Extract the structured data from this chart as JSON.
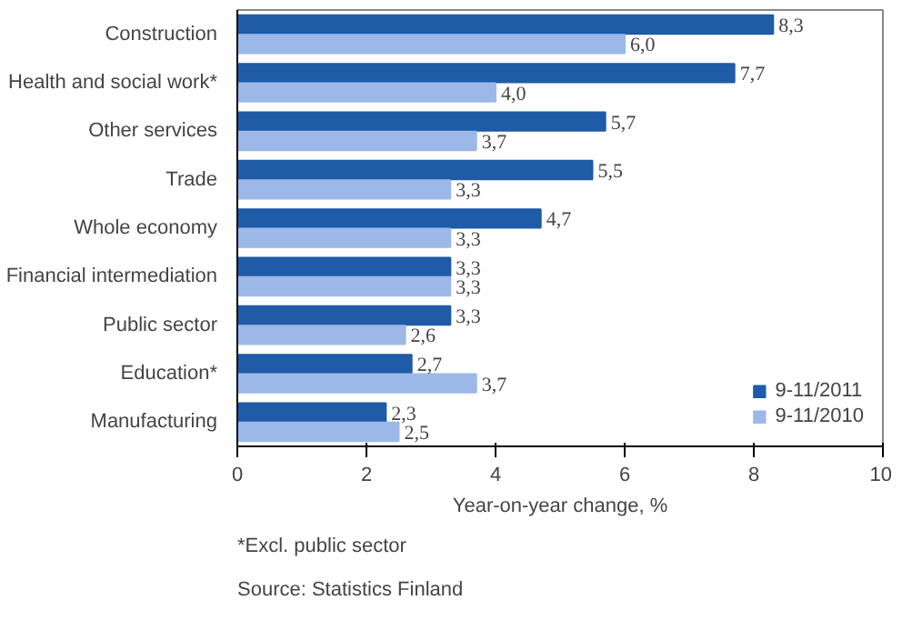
{
  "chart_data": {
    "type": "bar",
    "orientation": "horizontal",
    "xlabel": "Year-on-year change, %",
    "categories": [
      "Construction",
      "Health and social work*",
      "Other services",
      "Trade",
      "Whole economy",
      "Financial intermediation",
      "Public sector",
      "Education*",
      "Manufacturing"
    ],
    "series": [
      {
        "name": "9-11/2011",
        "color": "#1f5ba6",
        "values": [
          8.3,
          7.7,
          5.7,
          5.5,
          4.7,
          3.3,
          3.3,
          2.7,
          2.3
        ],
        "value_labels": [
          "8,3",
          "7,7",
          "5,7",
          "5,5",
          "4,7",
          "3,3",
          "3,3",
          "2,7",
          "2,3"
        ]
      },
      {
        "name": "9-11/2010",
        "color": "#9cb8e8",
        "values": [
          6.0,
          4.0,
          3.7,
          3.3,
          3.3,
          3.3,
          2.6,
          3.7,
          2.5
        ],
        "value_labels": [
          "6,0",
          "4,0",
          "3,7",
          "3,3",
          "3,3",
          "3,3",
          "2,6",
          "3,7",
          "2,5"
        ]
      }
    ],
    "xlim": [
      0,
      10
    ],
    "xticks": [
      0,
      2,
      4,
      6,
      8,
      10
    ],
    "legend": "bottom right",
    "annotations": [
      "*Excl. public sector",
      "Source: Statistics Finland"
    ]
  }
}
